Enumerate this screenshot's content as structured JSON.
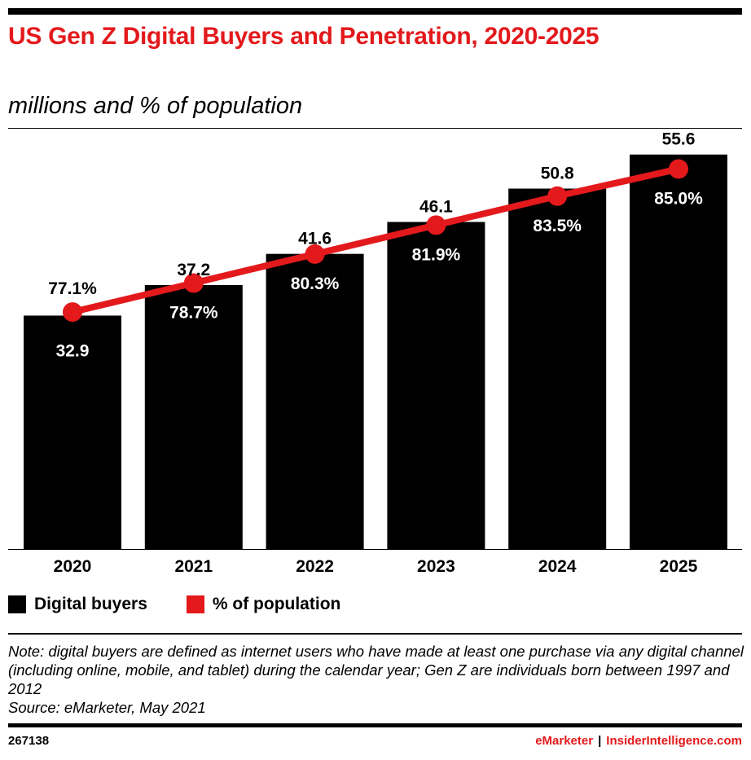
{
  "header": {
    "title": "US Gen Z Digital Buyers and Penetration, 2020-2025",
    "subtitle": "millions and % of population"
  },
  "chart_data": {
    "type": "bar",
    "categories": [
      "2020",
      "2021",
      "2022",
      "2023",
      "2024",
      "2025"
    ],
    "series": [
      {
        "name": "Digital buyers",
        "kind": "bar",
        "color": "#000000",
        "values": [
          32.9,
          37.2,
          41.6,
          46.1,
          50.8,
          55.6
        ],
        "labels": [
          "32.9",
          "37.2",
          "41.6",
          "46.1",
          "50.8",
          "55.6"
        ]
      },
      {
        "name": "% of population",
        "kind": "line",
        "color": "#e3191c",
        "values": [
          77.1,
          78.7,
          80.3,
          81.9,
          83.5,
          85.0
        ],
        "labels": [
          "77.1%",
          "78.7%",
          "80.3%",
          "81.9%",
          "83.5%",
          "85.0%"
        ]
      }
    ],
    "ylim": [
      0,
      60
    ],
    "y2lim": [
      50,
      100
    ],
    "grid": false,
    "legend": "bottom-left"
  },
  "legend": {
    "bars_label": "Digital buyers",
    "line_label": "% of population"
  },
  "note": {
    "text": "Note: digital buyers are defined as internet users who have made at least one purchase via any digital channel (including online, mobile, and tablet) during the calendar year; Gen Z are individuals born between 1997 and 2012",
    "source": "Source: eMarketer, May 2021"
  },
  "footer": {
    "chart_id": "267138",
    "brand_left": "eMarketer",
    "separator": "|",
    "brand_right": "InsiderIntelligence.com"
  },
  "colors": {
    "accent": "#e3191c",
    "bar": "#000000"
  }
}
